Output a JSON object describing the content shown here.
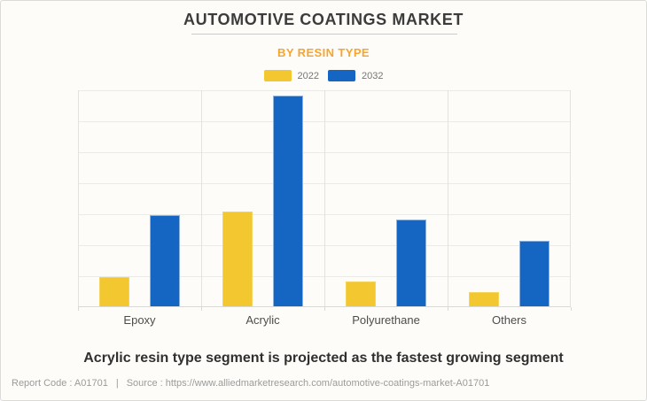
{
  "header": {
    "title": "AUTOMOTIVE COATINGS MARKET",
    "subtitle": "BY RESIN TYPE"
  },
  "chart_data": {
    "type": "bar",
    "title": "AUTOMOTIVE COATINGS MARKET",
    "subtitle": "BY RESIN TYPE",
    "categories": [
      "Epoxy",
      "Acrylic",
      "Polyurethane",
      "Others"
    ],
    "series": [
      {
        "name": "2022",
        "color": "#F3C72F",
        "values": [
          0.95,
          3.05,
          0.8,
          0.45
        ]
      },
      {
        "name": "2032",
        "color": "#1566C3",
        "values": [
          2.95,
          6.8,
          2.8,
          2.1
        ]
      }
    ],
    "xlabel": "",
    "ylabel": "",
    "ylim": [
      0,
      7
    ],
    "y_tick_labels_shown": false,
    "grid": true,
    "legend_position": "top"
  },
  "annotation": "Acrylic resin type segment is projected as the fastest growing segment",
  "footer": {
    "report_code": "Report Code : A01701",
    "separator": "|",
    "source": "Source : https://www.alliedmarketresearch.com/automotive-coatings-market-A01701"
  },
  "colors": {
    "series_2022": "#F3C72F",
    "series_2032": "#1566C3",
    "subtitle_accent": "#F9A42B",
    "background": "#FDFCF8"
  }
}
